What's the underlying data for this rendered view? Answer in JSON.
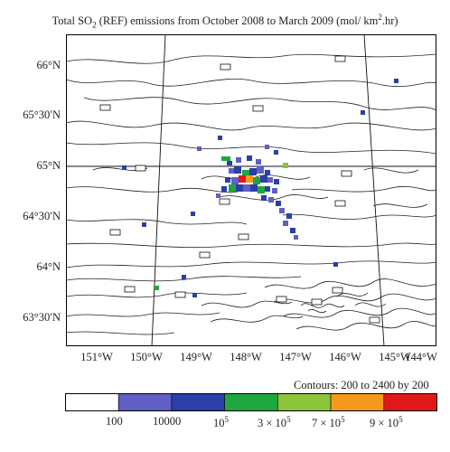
{
  "title": {
    "prefix": "Total  SO",
    "so2_sub": "2",
    "middle": " (REF) emissions from October 2008 to March 2009 (mol/ km",
    "km_sup": "2",
    "suffix": ".hr)"
  },
  "lat_labels": [
    "66°N",
    "65°30′N",
    "65°N",
    "64°30′N",
    "64°N",
    "63°30′N"
  ],
  "lon_labels": [
    "151°W",
    "150°W",
    "149°W",
    "148°W",
    "147°W",
    "146°W",
    "145°W",
    "144°W"
  ],
  "contours_note": "Contours: 200 to 2400 by 200",
  "colorbar": {
    "colors": [
      "#ffffff",
      "#5f5fc4",
      "#2a3fa8",
      "#1fa63c",
      "#8cc43a",
      "#f39a1d",
      "#e01818"
    ],
    "labels": [
      {
        "base": "100",
        "sup": ""
      },
      {
        "base": "10000",
        "sup": ""
      },
      {
        "base": "10",
        "sup": "5"
      },
      {
        "base": "3 × 10",
        "sup": "5"
      },
      {
        "base": "7 × 10",
        "sup": "5"
      },
      {
        "base": "9 × 10",
        "sup": "5"
      }
    ]
  }
}
